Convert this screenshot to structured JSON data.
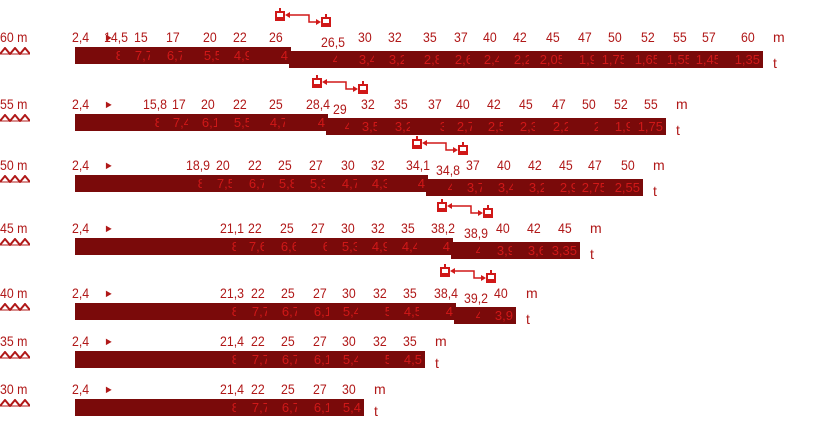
{
  "units": {
    "m": "m",
    "t": "t"
  },
  "start_radius": "2,4",
  "rows": [
    {
      "boom": "60 m",
      "radii": [
        "14,5",
        "15",
        "17",
        "20",
        "22",
        "26",
        "26,5",
        "30",
        "32",
        "35",
        "37",
        "40",
        "42",
        "45",
        "47",
        "50",
        "52",
        "55",
        "57",
        "60"
      ],
      "loads": [
        "8",
        "7,7",
        "6,7",
        "5,5",
        "4,9",
        "4",
        "4",
        "3,4",
        "3,2",
        "2,8",
        "2,6",
        "2,4",
        "2,2",
        "2,05",
        "1,9",
        "1,75",
        "1,65",
        "1,55",
        "1,45",
        "1,35"
      ]
    },
    {
      "boom": "55 m",
      "radii": [
        "15,8",
        "17",
        "20",
        "22",
        "25",
        "28,4",
        "29",
        "32",
        "35",
        "37",
        "40",
        "42",
        "45",
        "47",
        "50",
        "52",
        "55"
      ],
      "loads": [
        "8",
        "7,4",
        "6,1",
        "5,5",
        "4,7",
        "4",
        "4",
        "3,5",
        "3,2",
        "3",
        "2,7",
        "2,5",
        "2,3",
        "2,2",
        "2",
        "1,9",
        "1,75"
      ]
    },
    {
      "boom": "50 m",
      "radii": [
        "18,9",
        "20",
        "22",
        "25",
        "27",
        "30",
        "32",
        "34,1",
        "34,8",
        "37",
        "40",
        "42",
        "45",
        "47",
        "50"
      ],
      "loads": [
        "8",
        "7,5",
        "6,7",
        "5,8",
        "5,3",
        "4,7",
        "4,3",
        "4",
        "4",
        "3,7",
        "3,4",
        "3,2",
        "2,9",
        "2,75",
        "2,55"
      ]
    },
    {
      "boom": "45 m",
      "radii": [
        "21,1",
        "22",
        "25",
        "27",
        "30",
        "32",
        "35",
        "38,2",
        "38,9",
        "40",
        "42",
        "45"
      ],
      "loads": [
        "8",
        "7,6",
        "6,6",
        "6",
        "5,3",
        "4,9",
        "4,4",
        "4",
        "4",
        "3,9",
        "3,6",
        "3,35"
      ]
    },
    {
      "boom": "40 m",
      "radii": [
        "21,3",
        "22",
        "25",
        "27",
        "30",
        "32",
        "35",
        "38,4",
        "39,2",
        "40"
      ],
      "loads": [
        "8",
        "7,7",
        "6,7",
        "6,1",
        "5,4",
        "5",
        "4,5",
        "4",
        "4",
        "3,9"
      ]
    },
    {
      "boom": "35 m",
      "radii": [
        "21,4",
        "22",
        "25",
        "27",
        "30",
        "32",
        "35"
      ],
      "loads": [
        "8",
        "7,7",
        "6,7",
        "6,1",
        "5,4",
        "5",
        "4,5"
      ]
    },
    {
      "boom": "30 m",
      "radii": [
        "21,4",
        "22",
        "25",
        "27",
        "30"
      ],
      "loads": [
        "8",
        "7,7",
        "6,7",
        "6,1",
        "5,4"
      ]
    }
  ],
  "icons": {
    "jib": "tower-jib-icon",
    "hoist": "trolley-hoist-icon",
    "arrow": "right-arrow-icon"
  },
  "colors": {
    "text": "#b01818",
    "bar": "#7a0a0a",
    "bar_text": "#d01818"
  }
}
